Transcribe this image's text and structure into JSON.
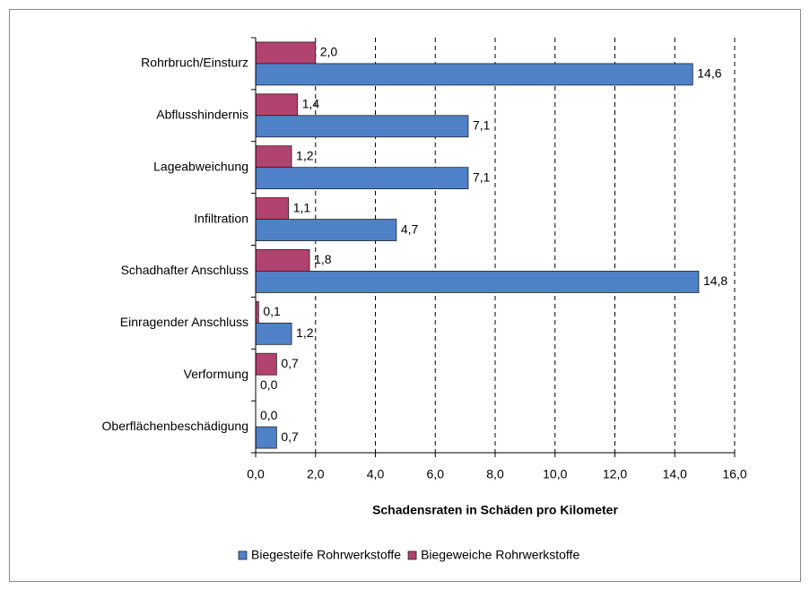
{
  "chart_data": {
    "type": "bar",
    "orientation": "horizontal",
    "categories": [
      "Rohrbruch/Einsturz",
      "Abflusshindernis",
      "Lageabweichung",
      "Infiltration",
      "Schadhafter Anschluss",
      "Einragender Anschluss",
      "Verformung",
      "Oberflächenbeschädigung"
    ],
    "series": [
      {
        "name": "Biegesteife Rohrwerkstoffe",
        "color": "#4f81c7",
        "values": [
          14.6,
          7.1,
          7.1,
          4.7,
          14.8,
          1.2,
          0.0,
          0.7
        ],
        "value_labels": [
          "14,6",
          "7,1",
          "7,1",
          "4,7",
          "14,8",
          "1,2",
          "0,0",
          "0,7"
        ]
      },
      {
        "name": "Biegeweiche Rohrwerkstoffe",
        "color": "#b2426f",
        "values": [
          2.0,
          1.4,
          1.2,
          1.1,
          1.8,
          0.1,
          0.7,
          0.0
        ],
        "value_labels": [
          "2,0",
          "1,4",
          "1,2",
          "1,1",
          "1,8",
          "0,1",
          "0,7",
          "0,0"
        ]
      }
    ],
    "xlabel": "Schadensraten in Schäden pro Kilometer",
    "xlim": [
      0,
      16
    ],
    "xticks": [
      {
        "value": 0,
        "label": "0,0"
      },
      {
        "value": 2,
        "label": "2,0"
      },
      {
        "value": 4,
        "label": "4,0"
      },
      {
        "value": 6,
        "label": "6,0"
      },
      {
        "value": 8,
        "label": "8,0"
      },
      {
        "value": 10,
        "label": "10,0"
      },
      {
        "value": 12,
        "label": "12,0"
      },
      {
        "value": 14,
        "label": "14,0"
      },
      {
        "value": 16,
        "label": "16,0"
      }
    ],
    "grid": true,
    "legend": "bottom"
  }
}
